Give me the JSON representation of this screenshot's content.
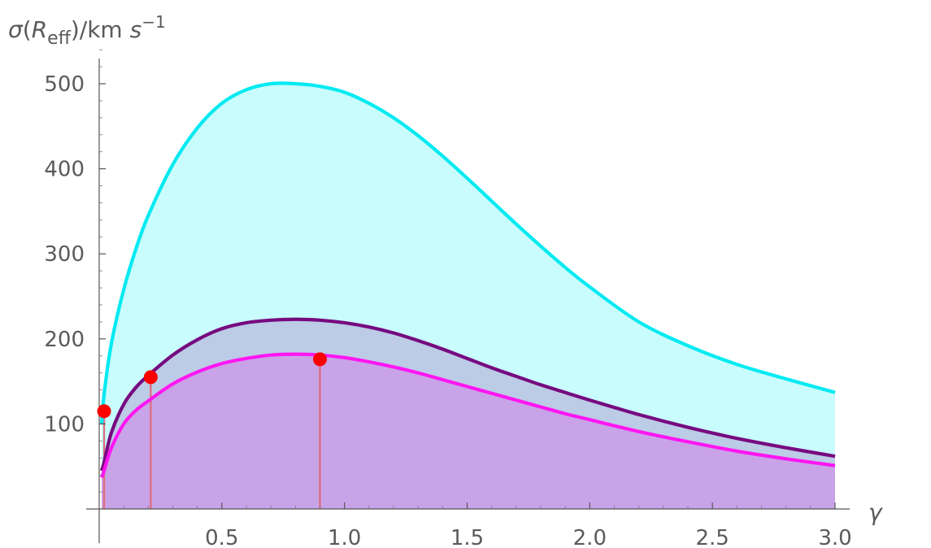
{
  "chart_data": {
    "type": "area",
    "title": "",
    "xlabel": "γ",
    "ylabel": "σ(R_eff)/km s^-1",
    "ylabel_parts": {
      "sym": "σ",
      "open": "(",
      "R": "R",
      "sub": "eff",
      "rest": ")/km ",
      "s": "s",
      "sup": "−1"
    },
    "xlim": [
      0,
      3.0
    ],
    "ylim": [
      0,
      500
    ],
    "x_ticks": [
      0.5,
      1.0,
      1.5,
      2.0,
      2.5,
      3.0
    ],
    "x_tick_labels": [
      "0.5",
      "1.0",
      "1.5",
      "2.0",
      "2.5",
      "3.0"
    ],
    "y_ticks": [
      100,
      200,
      300,
      400,
      500
    ],
    "y_tick_labels": [
      "100",
      "200",
      "300",
      "400",
      "500"
    ],
    "grid": false,
    "series": [
      {
        "color": "#00eaf2",
        "fill": "#c9fcfc",
        "x": [
          0.01,
          0.02,
          0.05,
          0.1,
          0.15,
          0.2,
          0.3,
          0.4,
          0.5,
          0.6,
          0.7,
          0.8,
          0.9,
          1.0,
          1.1,
          1.2,
          1.3,
          1.4,
          1.5,
          1.6,
          1.7,
          1.8,
          1.9,
          2.0,
          2.2,
          2.4,
          2.6,
          2.8,
          3.0
        ],
        "values": [
          100,
          135,
          195,
          258,
          306,
          345,
          405,
          448,
          477,
          493,
          500,
          500,
          497,
          490,
          477,
          460,
          439,
          415,
          389,
          362,
          335,
          309,
          284,
          261,
          220,
          192,
          170,
          153,
          137
        ]
      },
      {
        "color": "#770a80",
        "fill": "#bccbe6",
        "x": [
          0.01,
          0.02,
          0.05,
          0.1,
          0.15,
          0.2,
          0.3,
          0.4,
          0.5,
          0.6,
          0.7,
          0.8,
          0.9,
          1.0,
          1.1,
          1.2,
          1.3,
          1.4,
          1.5,
          1.6,
          1.7,
          1.8,
          1.9,
          2.0,
          2.2,
          2.4,
          2.6,
          2.8,
          3.0
        ],
        "values": [
          45,
          55,
          90,
          123,
          143,
          157,
          181,
          199,
          212,
          219,
          222,
          223,
          222,
          219,
          214,
          207,
          198,
          188,
          177,
          166,
          156,
          146,
          137,
          128,
          111,
          96,
          83,
          72,
          62
        ]
      },
      {
        "color": "#ff16f2",
        "fill": "#c8a3e8",
        "x": [
          0.01,
          0.02,
          0.05,
          0.1,
          0.15,
          0.2,
          0.3,
          0.4,
          0.5,
          0.6,
          0.7,
          0.8,
          0.9,
          1.0,
          1.1,
          1.2,
          1.3,
          1.4,
          1.5,
          1.6,
          1.7,
          1.8,
          1.9,
          2.0,
          2.2,
          2.4,
          2.6,
          2.8,
          3.0
        ],
        "values": [
          37,
          45,
          72,
          100,
          116,
          127,
          147,
          161,
          171,
          177,
          181,
          182,
          181,
          178,
          173,
          167,
          160,
          152,
          144,
          136,
          128,
          120,
          112,
          105,
          91,
          79,
          68,
          59,
          51
        ]
      }
    ],
    "points": [
      {
        "x": 0.02,
        "y": 115
      },
      {
        "x": 0.21,
        "y": 155
      },
      {
        "x": 0.9,
        "y": 176
      }
    ],
    "point_color": "#ff0000",
    "droplines_color": "#e06a7a"
  }
}
